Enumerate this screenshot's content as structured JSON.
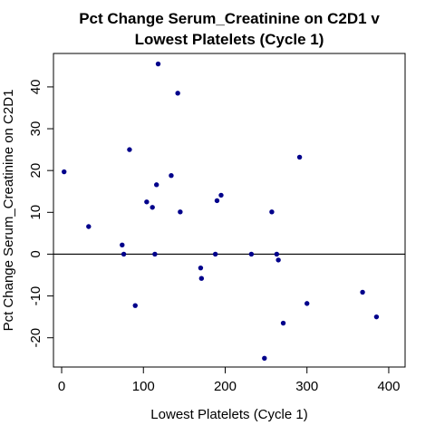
{
  "chart_data": {
    "type": "scatter",
    "title_lines": [
      "Pct Change Serum_Creatinine on C2D1 v",
      "Lowest Platelets (Cycle 1)"
    ],
    "xlabel": "Lowest Platelets (Cycle 1)",
    "ylabel": "Pct Change Serum_Creatinine on C2D1",
    "xlim": [
      -10,
      420
    ],
    "ylim": [
      -27,
      48
    ],
    "xticks": [
      0,
      100,
      200,
      300,
      400
    ],
    "yticks": [
      -20,
      -10,
      0,
      10,
      20,
      30,
      40
    ],
    "hline": 0,
    "grid": false,
    "point_color": "#00008B",
    "points": [
      {
        "x": 3,
        "y": 19.7
      },
      {
        "x": 33,
        "y": 6.6
      },
      {
        "x": 74,
        "y": 2.2
      },
      {
        "x": 76,
        "y": 0
      },
      {
        "x": 83,
        "y": 25
      },
      {
        "x": 90,
        "y": -12.3
      },
      {
        "x": 104,
        "y": 12.5
      },
      {
        "x": 111,
        "y": 11.2
      },
      {
        "x": 114,
        "y": 0
      },
      {
        "x": 116,
        "y": 16.6
      },
      {
        "x": 118,
        "y": 45.5
      },
      {
        "x": 134,
        "y": 18.8
      },
      {
        "x": 142,
        "y": 38.5
      },
      {
        "x": 145,
        "y": 10.1
      },
      {
        "x": 170,
        "y": -3.3
      },
      {
        "x": 171,
        "y": -5.8
      },
      {
        "x": 188,
        "y": 0
      },
      {
        "x": 190,
        "y": 12.8
      },
      {
        "x": 195,
        "y": 14.1
      },
      {
        "x": 232,
        "y": 0
      },
      {
        "x": 248,
        "y": -24.9
      },
      {
        "x": 257,
        "y": 10.1
      },
      {
        "x": 263,
        "y": 0
      },
      {
        "x": 265,
        "y": -1.4
      },
      {
        "x": 271,
        "y": -16.5
      },
      {
        "x": 291,
        "y": 23.2
      },
      {
        "x": 300,
        "y": -11.8
      },
      {
        "x": 368,
        "y": -9.1
      },
      {
        "x": 385,
        "y": -15
      }
    ]
  }
}
